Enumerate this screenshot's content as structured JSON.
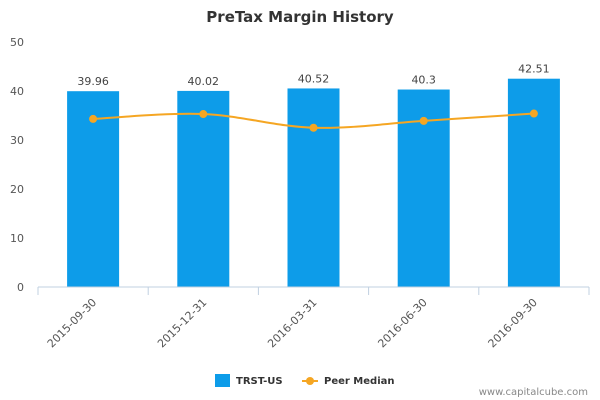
{
  "chart_data": {
    "type": "bar",
    "title": "PreTax Margin History",
    "categories": [
      "2015-09-30",
      "2015-12-31",
      "2016-03-31",
      "2016-06-30",
      "2016-09-30"
    ],
    "series": [
      {
        "name": "TRST-US",
        "kind": "bar",
        "color": "#0d9ce9",
        "values": [
          39.96,
          40.02,
          40.52,
          40.3,
          42.51
        ],
        "labels": [
          "39.96",
          "40.02",
          "40.52",
          "40.3",
          "42.51"
        ]
      },
      {
        "name": "Peer Median",
        "kind": "line",
        "color": "#f5a623",
        "values": [
          34.3,
          35.3,
          32.5,
          33.9,
          35.4
        ]
      }
    ],
    "yticks": [
      "0",
      "10",
      "20",
      "30",
      "40",
      "50"
    ],
    "ylim": [
      0,
      50
    ],
    "grid": false,
    "legend_position": "bottom-center"
  },
  "credit": "www.capitalcube.com"
}
